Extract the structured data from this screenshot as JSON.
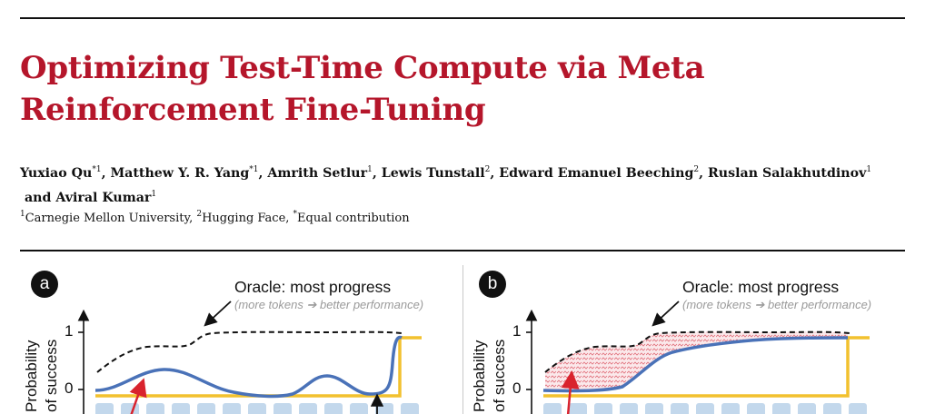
{
  "title": {
    "line1": "Optimizing Test-Time Compute via Meta",
    "line2": "Reinforcement Fine-Tuning"
  },
  "authors": [
    {
      "name": "Yuxiao Qu",
      "sup": "*1",
      "sep": ", "
    },
    {
      "name": "Matthew Y. R. Yang",
      "sup": "*1",
      "sep": ", "
    },
    {
      "name": "Amrith Setlur",
      "sup": "1",
      "sep": ", "
    },
    {
      "name": "Lewis Tunstall",
      "sup": "2",
      "sep": ", "
    },
    {
      "name": "Edward Emanuel Beeching",
      "sup": "2",
      "sep": ", "
    },
    {
      "name": "Ruslan Salakhutdinov",
      "sup": "1",
      "sep": " and "
    },
    {
      "name": "Aviral Kumar",
      "sup": "1",
      "sep": ""
    }
  ],
  "affiliations": {
    "sup1": "1",
    "text1": "Carnegie Mellon University, ",
    "sup2": "2",
    "text2": "Hugging Face, ",
    "sup3": "*",
    "text3": "Equal contribution"
  },
  "figure": {
    "panels": [
      {
        "label": "a",
        "oracle_title": "Oracle: most progress",
        "oracle_subtitle": "(more tokens ➔ better performance)",
        "ylabel_line1": "Probability",
        "ylabel_line2": "of success",
        "yticks": [
          "1",
          "0"
        ]
      },
      {
        "label": "b",
        "oracle_title": "Oracle: most progress",
        "oracle_subtitle": "(more tokens ➔ better performance)",
        "ylabel_line1": "Probability",
        "ylabel_line2": "of success",
        "yticks": [
          "1",
          "0"
        ]
      }
    ],
    "colors": {
      "oracle": "#111111",
      "model": "#4a72b8",
      "outcome": "#f2c12e",
      "tokens": "#c3d8ec",
      "arrow": "#d9232d",
      "gap_fill": "#e6a3aa"
    }
  }
}
